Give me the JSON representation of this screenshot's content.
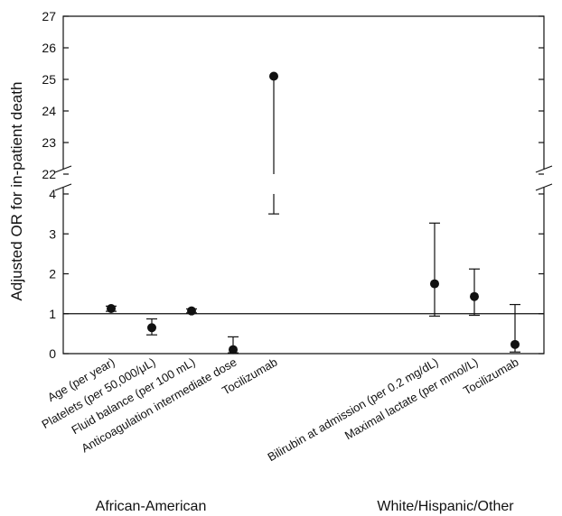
{
  "chart_data": {
    "type": "scatter",
    "ylabel": "Adjusted OR for in-patient death",
    "y_axis": {
      "broken": true,
      "lower_range": [
        0,
        4
      ],
      "upper_range": [
        22,
        27
      ],
      "lower_ticks": [
        "0",
        "1",
        "2",
        "3",
        "4"
      ],
      "upper_ticks": [
        "22",
        "23",
        "24",
        "25",
        "26",
        "27"
      ]
    },
    "reference_line": 1,
    "groups": [
      {
        "label": "African-American",
        "points": [
          {
            "category": "Age (per year)",
            "or": 1.13,
            "ci_low": 1.06,
            "ci_high": 1.19
          },
          {
            "category": "Platelets (per 50,000/μL)",
            "or": 0.65,
            "ci_low": 0.47,
            "ci_high": 0.87
          },
          {
            "category": "Fluid balance (per 100 mL)",
            "or": 1.07,
            "ci_low": 1.02,
            "ci_high": 1.12
          },
          {
            "category": "Anticoagulation intermediate dose",
            "or": 0.1,
            "ci_low": 0.02,
            "ci_high": 0.42
          },
          {
            "category": "Tocilizumab",
            "or": 25.1,
            "ci_low": 3.5,
            "ci_high": 25.1
          }
        ]
      },
      {
        "label": "White/Hispanic/Other",
        "points": [
          {
            "category": "Bilirubin at admission (per 0.2 mg/dL)",
            "or": 1.75,
            "ci_low": 0.94,
            "ci_high": 3.27
          },
          {
            "category": "Maximal lactate (per mmol/L)",
            "or": 1.43,
            "ci_low": 0.96,
            "ci_high": 2.12
          },
          {
            "category": "Tocilizumab",
            "or": 0.23,
            "ci_low": 0.04,
            "ci_high": 1.23
          }
        ]
      }
    ]
  }
}
